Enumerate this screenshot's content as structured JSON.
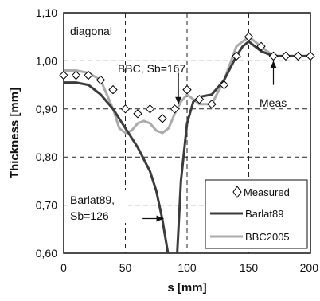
{
  "chart_data": {
    "type": "line",
    "panel_label": "diagonal",
    "xlabel": "s [mm]",
    "ylabel": "Thickness [mm]",
    "xlim": [
      0,
      200
    ],
    "ylim": [
      0.6,
      1.1
    ],
    "x_ticks": [
      0,
      50,
      100,
      150,
      200
    ],
    "x_tick_labels": [
      "0",
      "50",
      "100",
      "150",
      "200"
    ],
    "y_ticks": [
      0.6,
      0.7,
      0.8,
      0.9,
      1.0,
      1.1
    ],
    "y_tick_labels": [
      "0,60",
      "0,70",
      "0,80",
      "0,90",
      "1,00",
      "1,10"
    ],
    "grid": "dashed",
    "legend_position": "bottom-right",
    "series": [
      {
        "name": "Measured",
        "type": "scatter",
        "marker": "diamond",
        "color": "#000000",
        "x": [
          0,
          10,
          20,
          30,
          40,
          50,
          60,
          70,
          80,
          90,
          100,
          110,
          120,
          130,
          140,
          150,
          160,
          170,
          180,
          190,
          200
        ],
        "y": [
          0.97,
          0.97,
          0.97,
          0.96,
          0.94,
          0.9,
          0.89,
          0.9,
          0.88,
          0.9,
          0.94,
          0.92,
          0.91,
          0.95,
          1.01,
          1.05,
          1.03,
          1.01,
          1.01,
          1.01,
          1.01
        ]
      },
      {
        "name": "Barlat89",
        "type": "line",
        "color": "#3c3c3c",
        "width": 3,
        "segments": [
          {
            "x": [
              0,
              10,
              20,
              30,
              40,
              50,
              60,
              70,
              75,
              80,
              84.5
            ],
            "y": [
              0.955,
              0.955,
              0.95,
              0.93,
              0.9,
              0.86,
              0.82,
              0.77,
              0.73,
              0.67,
              0.6
            ]
          },
          {
            "x": [
              92,
              95,
              100,
              105,
              110,
              120,
              130,
              140,
              145,
              150,
              160,
              170,
              180,
              200
            ],
            "y": [
              0.6,
              0.75,
              0.87,
              0.915,
              0.925,
              0.93,
              0.96,
              1.01,
              1.03,
              1.04,
              1.02,
              1.01,
              1.01,
              1.01
            ]
          }
        ]
      },
      {
        "name": "BBC2005",
        "type": "line",
        "color": "#ababab",
        "width": 3,
        "segments": [
          {
            "x": [
              0,
              10,
              20,
              30,
              40,
              45,
              50,
              55,
              60,
              65,
              70,
              75,
              80,
              85,
              90,
              95,
              100,
              105,
              110,
              120,
              130,
              140,
              150,
              160,
              170,
              180,
              200
            ],
            "y": [
              0.98,
              0.98,
              0.975,
              0.96,
              0.9,
              0.86,
              0.85,
              0.855,
              0.87,
              0.875,
              0.87,
              0.855,
              0.85,
              0.86,
              0.89,
              0.915,
              0.93,
              0.92,
              0.91,
              0.91,
              0.96,
              1.03,
              1.05,
              1.03,
              1.01,
              1.01,
              1.01
            ]
          }
        ]
      }
    ],
    "annotations": [
      {
        "text": "BBC, Sb=167",
        "arrow_from": [
          93,
          0.975
        ],
        "arrow_to": [
          93,
          0.91
        ]
      },
      {
        "text": "Meas",
        "arrow_from": [
          170,
          0.95
        ],
        "arrow_to": [
          170,
          1.0
        ]
      },
      {
        "lines": [
          "Barlat89,",
          "Sb=126"
        ],
        "arrow_from": [
          64,
          0.672
        ],
        "arrow_to": [
          81,
          0.672
        ]
      }
    ]
  }
}
